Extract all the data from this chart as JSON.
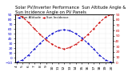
{
  "title": "Solar PV/Inverter Performance  Sun Altitude Angle & Sun Incidence Angle on PV Panels",
  "blue_label": "Sun Altitude",
  "red_label": "Sun Incidence",
  "hours": [
    4,
    5,
    6,
    7,
    8,
    9,
    10,
    11,
    12,
    13,
    14,
    15,
    16,
    17,
    18,
    19,
    20
  ],
  "sun_altitude": [
    -10,
    -5,
    5,
    18,
    30,
    41,
    50,
    56,
    58,
    56,
    50,
    41,
    30,
    18,
    5,
    -5,
    -10
  ],
  "sun_incidence": [
    90,
    85,
    75,
    63,
    52,
    42,
    34,
    28,
    25,
    28,
    34,
    42,
    52,
    63,
    75,
    85,
    90
  ],
  "blue_color": "#0000cc",
  "red_color": "#cc0000",
  "ylim_left": [
    -10,
    90
  ],
  "ylim_right": [
    0,
    90
  ],
  "background": "#ffffff",
  "grid_color": "#bbbbbb",
  "title_fontsize": 3.8,
  "tick_fontsize": 3.2,
  "legend_fontsize": 2.8,
  "yticks_left": [
    -10,
    0,
    10,
    20,
    30,
    40,
    50,
    60,
    70,
    80,
    90
  ],
  "yticks_right": [
    0,
    10,
    20,
    30,
    40,
    50,
    60,
    70,
    80,
    90
  ],
  "xtick_labels": [
    "4",
    "5",
    "6",
    "7",
    "8",
    "9",
    "10",
    "11",
    "12",
    "13",
    "14",
    "15",
    "16",
    "17",
    "18",
    "19",
    "20"
  ]
}
